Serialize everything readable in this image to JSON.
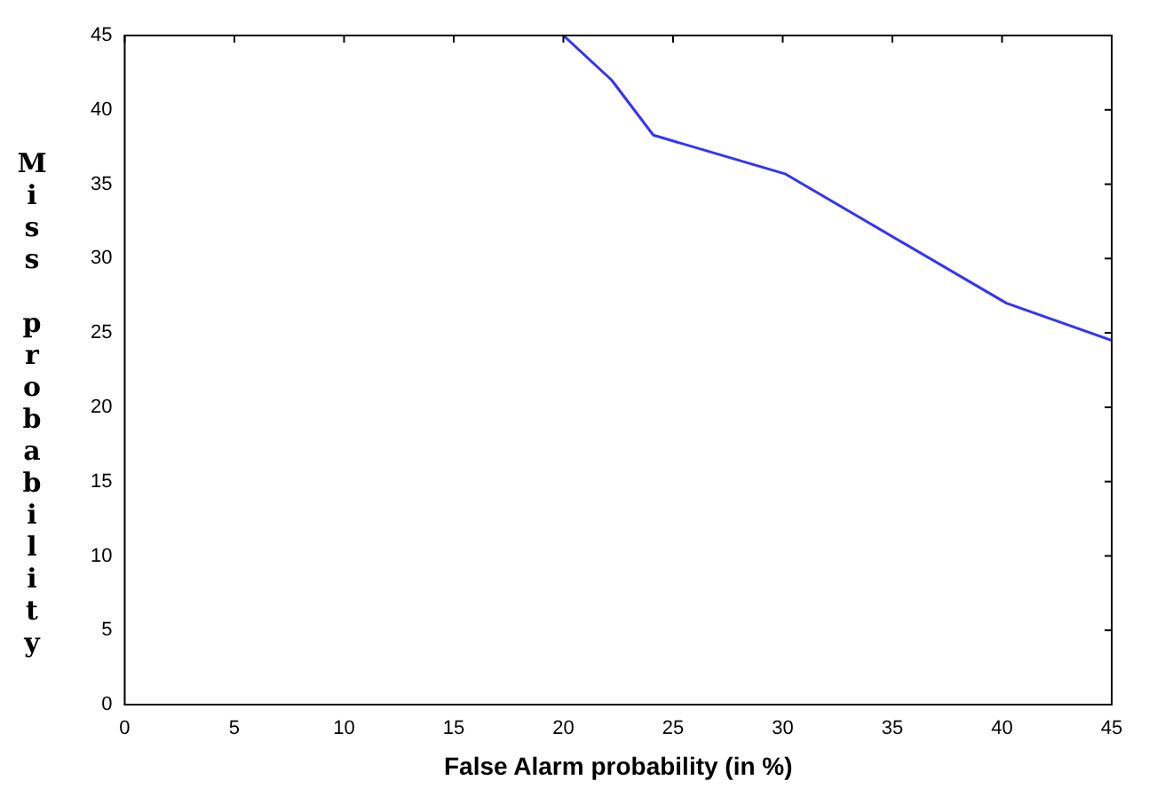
{
  "chart_data": {
    "type": "line",
    "xlabel": "False Alarm probability (in %)",
    "ylabel": "Miss probability",
    "x": [
      20,
      22.2,
      24.1,
      30.1,
      40.2,
      45
    ],
    "series": [
      {
        "color": "#3333ff",
        "values": [
          45,
          42,
          38.3,
          35.7,
          27,
          24.5
        ]
      }
    ],
    "xlim": [
      0,
      45
    ],
    "xticks": [
      0,
      5,
      10,
      15,
      20,
      25,
      30,
      35,
      40,
      45
    ],
    "ylim": [
      0,
      45
    ],
    "yticks": [
      0,
      5,
      10,
      15,
      20,
      25,
      30,
      35,
      40,
      45
    ],
    "grid": false,
    "legend": false,
    "marker": "none",
    "line_style": "solid"
  }
}
